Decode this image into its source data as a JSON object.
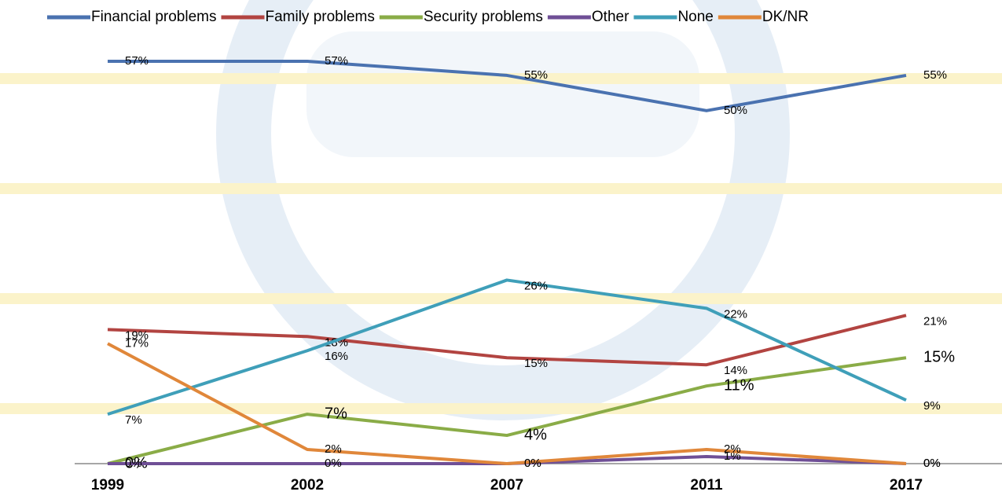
{
  "chart_data": {
    "type": "line",
    "categories": [
      "1999",
      "2002",
      "2007",
      "2011",
      "2017"
    ],
    "ylim": [
      0,
      60
    ],
    "legend": "top",
    "series": [
      {
        "name": "Financial problems",
        "color": "#4a72b0",
        "values": [
          57,
          57,
          55,
          50,
          55
        ],
        "value_labels": [
          "57%",
          "57%",
          "55%",
          "50%",
          "55%"
        ]
      },
      {
        "name": "Family problems",
        "color": "#b24441",
        "values": [
          19,
          18,
          15,
          14,
          21
        ],
        "value_labels": [
          "19%",
          "18%",
          "15%",
          "14%",
          "21%"
        ]
      },
      {
        "name": "Security problems",
        "color": "#8aac47",
        "values": [
          0,
          7,
          4,
          11,
          15
        ],
        "value_labels": [
          "0%",
          "7%",
          "4%",
          "11%",
          "15%"
        ]
      },
      {
        "name": "Other",
        "color": "#6f4f96",
        "values": [
          0,
          0,
          0,
          1,
          0
        ],
        "value_labels": [
          "0%",
          "0%",
          "0%",
          "1%",
          "0%"
        ]
      },
      {
        "name": "None",
        "color": "#3f9fb9",
        "values": [
          7,
          16,
          26,
          22,
          9
        ],
        "value_labels": [
          "7%",
          "16%",
          "26%",
          "22%",
          "9%"
        ]
      },
      {
        "name": "DK/NR",
        "color": "#e0873a",
        "values": [
          17,
          2,
          0,
          2,
          0
        ],
        "value_labels": [
          "17%",
          "2%",
          "0%",
          "2%",
          "0%"
        ]
      }
    ]
  }
}
